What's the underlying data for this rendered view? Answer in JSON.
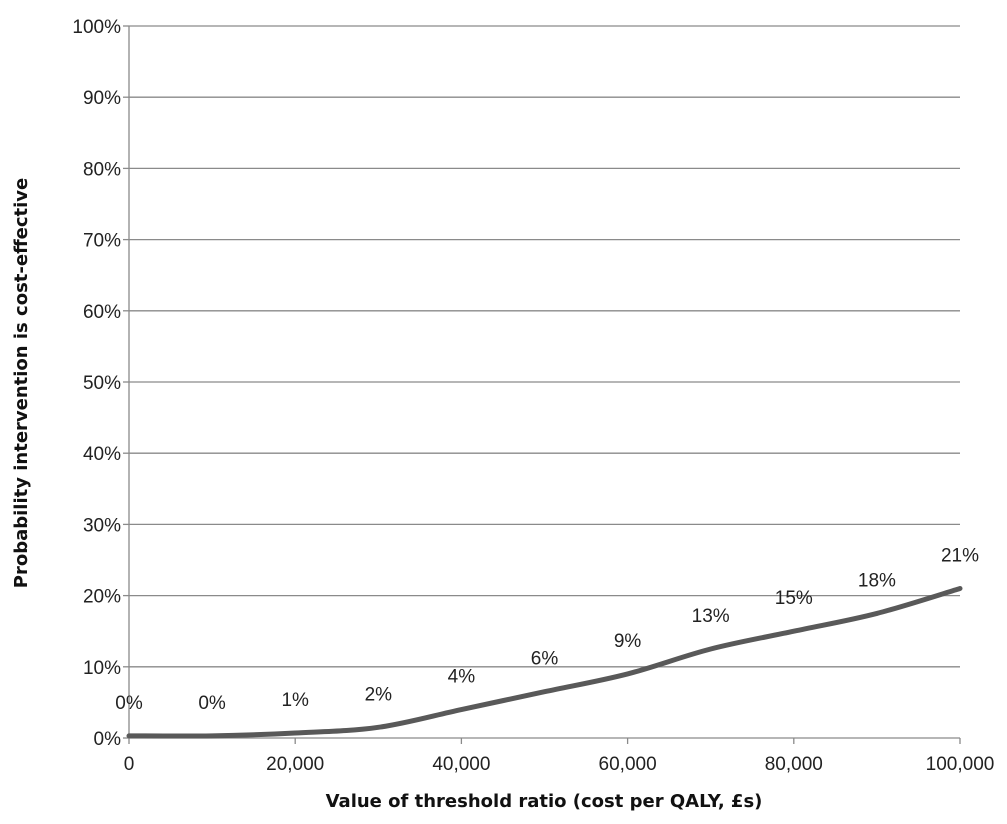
{
  "chart_data": {
    "type": "line",
    "title": "",
    "xlabel": "Value of threshold ratio (cost per QALY, £s)",
    "ylabel": "Probability intervention is cost-effective",
    "xlim": [
      0,
      100000
    ],
    "ylim": [
      0,
      1
    ],
    "x_ticks": [
      0,
      20000,
      40000,
      60000,
      80000,
      100000
    ],
    "x_tick_labels": [
      "0",
      "20,000",
      "40,000",
      "60,000",
      "80,000",
      "100,000"
    ],
    "y_ticks": [
      0,
      0.1,
      0.2,
      0.3,
      0.4,
      0.5,
      0.6,
      0.7,
      0.8,
      0.9,
      1.0
    ],
    "y_tick_labels": [
      "0%",
      "10%",
      "20%",
      "30%",
      "40%",
      "50%",
      "60%",
      "70%",
      "80%",
      "90%",
      "100%"
    ],
    "grid": true,
    "legend": "none",
    "series": [
      {
        "color": "#595959",
        "x": [
          0,
          10000,
          20000,
          30000,
          40000,
          50000,
          60000,
          70000,
          80000,
          90000,
          100000
        ],
        "values": [
          0.003,
          0.003,
          0.007,
          0.015,
          0.04,
          0.065,
          0.09,
          0.125,
          0.15,
          0.175,
          0.21
        ],
        "data_labels": [
          "0%",
          "0%",
          "1%",
          "2%",
          "4%",
          "6%",
          "9%",
          "13%",
          "15%",
          "18%",
          "21%"
        ]
      }
    ]
  }
}
